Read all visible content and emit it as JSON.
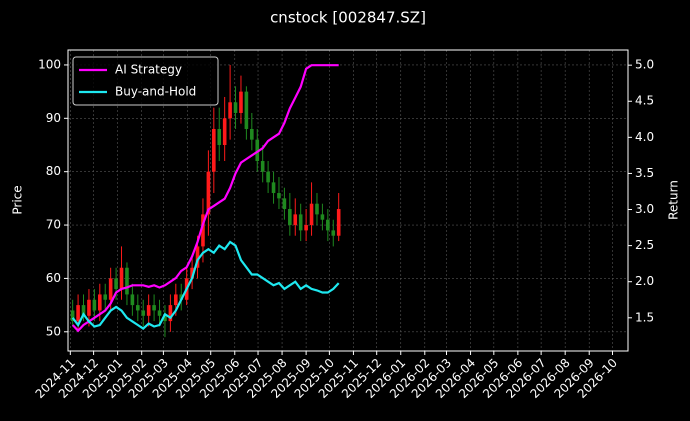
{
  "chart_data": {
    "type": "candlestick",
    "title": "cnstock [002847.SZ]",
    "ylabel": "Price",
    "y2label": "Return",
    "x": [
      "2024-11-04",
      "2024-11-11",
      "2024-11-18",
      "2024-11-25",
      "2024-12-02",
      "2024-12-09",
      "2024-12-16",
      "2024-12-23",
      "2024-12-30",
      "2025-01-06",
      "2025-01-13",
      "2025-01-20",
      "2025-01-27",
      "2025-02-03",
      "2025-02-10",
      "2025-02-17",
      "2025-02-24",
      "2025-03-03",
      "2025-03-10",
      "2025-03-17",
      "2025-03-24",
      "2025-03-31",
      "2025-04-07",
      "2025-04-14",
      "2025-04-21",
      "2025-04-28",
      "2025-05-05",
      "2025-05-12",
      "2025-05-19",
      "2025-05-26",
      "2025-06-02",
      "2025-06-09",
      "2025-06-16",
      "2025-06-23",
      "2025-06-30",
      "2025-07-07",
      "2025-07-14",
      "2025-07-21",
      "2025-07-28",
      "2025-08-04",
      "2025-08-11",
      "2025-08-18",
      "2025-08-25",
      "2025-09-01",
      "2025-09-08",
      "2025-09-15",
      "2025-09-22",
      "2025-09-29",
      "2025-10-06",
      "2025-10-13"
    ],
    "open": [
      54,
      52,
      55,
      53,
      56,
      54,
      57,
      56,
      60,
      58,
      62,
      57,
      55,
      54,
      53,
      55,
      54,
      53,
      52,
      55,
      57,
      56,
      60,
      62,
      66,
      72,
      80,
      88,
      85,
      90,
      93,
      91,
      95,
      88,
      86,
      82,
      80,
      78,
      76,
      75,
      73,
      70,
      72,
      69,
      70,
      74,
      72,
      71,
      69,
      68
    ],
    "high": [
      56,
      57,
      57,
      58,
      58,
      59,
      59,
      62,
      62,
      66,
      63,
      59,
      57,
      56,
      57,
      57,
      56,
      55,
      57,
      59,
      59,
      62,
      64,
      68,
      75,
      84,
      92,
      92,
      94,
      100,
      96,
      98,
      96,
      91,
      88,
      85,
      82,
      80,
      79,
      77,
      76,
      75,
      74,
      73,
      78,
      76,
      74,
      73,
      71,
      76
    ],
    "low": [
      51,
      50,
      52,
      51,
      52,
      52,
      54,
      54,
      56,
      56,
      55,
      53,
      52,
      51,
      51,
      52,
      51,
      49,
      50,
      53,
      54,
      55,
      58,
      60,
      63,
      68,
      76,
      82,
      82,
      86,
      88,
      89,
      86,
      84,
      80,
      78,
      76,
      74,
      73,
      71,
      68,
      68,
      67,
      67,
      68,
      70,
      69,
      67,
      66,
      67
    ],
    "close": [
      52,
      55,
      53,
      56,
      54,
      57,
      56,
      60,
      58,
      62,
      57,
      55,
      54,
      53,
      55,
      54,
      53,
      52,
      55,
      57,
      56,
      60,
      62,
      66,
      72,
      80,
      88,
      85,
      90,
      93,
      91,
      95,
      88,
      86,
      82,
      80,
      78,
      76,
      75,
      73,
      70,
      72,
      69,
      70,
      74,
      72,
      71,
      69,
      68,
      73
    ],
    "up_color": "#ff1a1a",
    "down_color": "#1f8a1f",
    "series": [
      {
        "name": "AI Strategy",
        "color": "#ff00ff",
        "axis": "y2",
        "values": [
          1.4,
          1.32,
          1.4,
          1.45,
          1.5,
          1.55,
          1.6,
          1.7,
          1.85,
          1.9,
          1.92,
          1.95,
          1.95,
          1.95,
          1.93,
          1.95,
          1.92,
          1.95,
          2.0,
          2.05,
          2.15,
          2.2,
          2.35,
          2.55,
          2.8,
          3.0,
          3.05,
          3.1,
          3.15,
          3.3,
          3.5,
          3.65,
          3.7,
          3.75,
          3.8,
          3.85,
          3.95,
          4.0,
          4.05,
          4.2,
          4.4,
          4.55,
          4.7,
          4.95,
          5.0,
          5.0,
          5.0,
          5.0,
          5.0,
          5.0
        ]
      },
      {
        "name": "Buy-and-Hold",
        "color": "#1ee8f0",
        "axis": "y2",
        "values": [
          1.5,
          1.4,
          1.55,
          1.45,
          1.38,
          1.4,
          1.5,
          1.6,
          1.65,
          1.6,
          1.5,
          1.45,
          1.4,
          1.35,
          1.42,
          1.38,
          1.4,
          1.55,
          1.5,
          1.6,
          1.75,
          1.9,
          2.05,
          2.3,
          2.4,
          2.45,
          2.4,
          2.5,
          2.45,
          2.55,
          2.5,
          2.3,
          2.2,
          2.1,
          2.1,
          2.05,
          2.0,
          1.95,
          1.98,
          1.9,
          1.95,
          2.0,
          1.9,
          1.95,
          1.9,
          1.88,
          1.85,
          1.85,
          1.9,
          1.98
        ]
      }
    ],
    "xlim": [
      "2024-10-29",
      "2026-10-21"
    ],
    "xticks": [
      {
        "value": "2024-11-01",
        "label": "2024-11"
      },
      {
        "value": "2024-12-01",
        "label": "2024-12"
      },
      {
        "value": "2025-01-01",
        "label": "2025-01"
      },
      {
        "value": "2025-02-01",
        "label": "2025-02"
      },
      {
        "value": "2025-03-01",
        "label": "2025-03"
      },
      {
        "value": "2025-04-01",
        "label": "2025-04"
      },
      {
        "value": "2025-05-01",
        "label": "2025-05"
      },
      {
        "value": "2025-06-01",
        "label": "2025-06"
      },
      {
        "value": "2025-07-01",
        "label": "2025-07"
      },
      {
        "value": "2025-08-01",
        "label": "2025-08"
      },
      {
        "value": "2025-09-01",
        "label": "2025-09"
      },
      {
        "value": "2025-10-01",
        "label": "2025-10"
      },
      {
        "value": "2025-11-01",
        "label": "2025-11"
      },
      {
        "value": "2025-12-01",
        "label": "2025-12"
      },
      {
        "value": "2026-01-01",
        "label": "2026-01"
      },
      {
        "value": "2026-02-01",
        "label": "2026-02"
      },
      {
        "value": "2026-03-01",
        "label": "2026-03"
      },
      {
        "value": "2026-04-01",
        "label": "2026-04"
      },
      {
        "value": "2026-05-01",
        "label": "2026-05"
      },
      {
        "value": "2026-06-01",
        "label": "2026-06"
      },
      {
        "value": "2026-07-01",
        "label": "2026-07"
      },
      {
        "value": "2026-08-01",
        "label": "2026-08"
      },
      {
        "value": "2026-09-01",
        "label": "2026-09"
      },
      {
        "value": "2026-10-01",
        "label": "2026-10"
      }
    ],
    "ylim": [
      46.4,
      102.8
    ],
    "yticks": [
      50,
      60,
      70,
      80,
      90,
      100
    ],
    "y2lim": [
      1.04,
      5.21
    ],
    "y2ticks": [
      1.5,
      {
        "value": 2,
        "label": "2.0"
      },
      2.5,
      {
        "value": 3,
        "label": "3.0"
      },
      3.5,
      {
        "value": 4,
        "label": "4.0"
      },
      4.5,
      {
        "value": 5,
        "label": "5.0"
      }
    ],
    "grid": true,
    "legend": "upper left"
  }
}
